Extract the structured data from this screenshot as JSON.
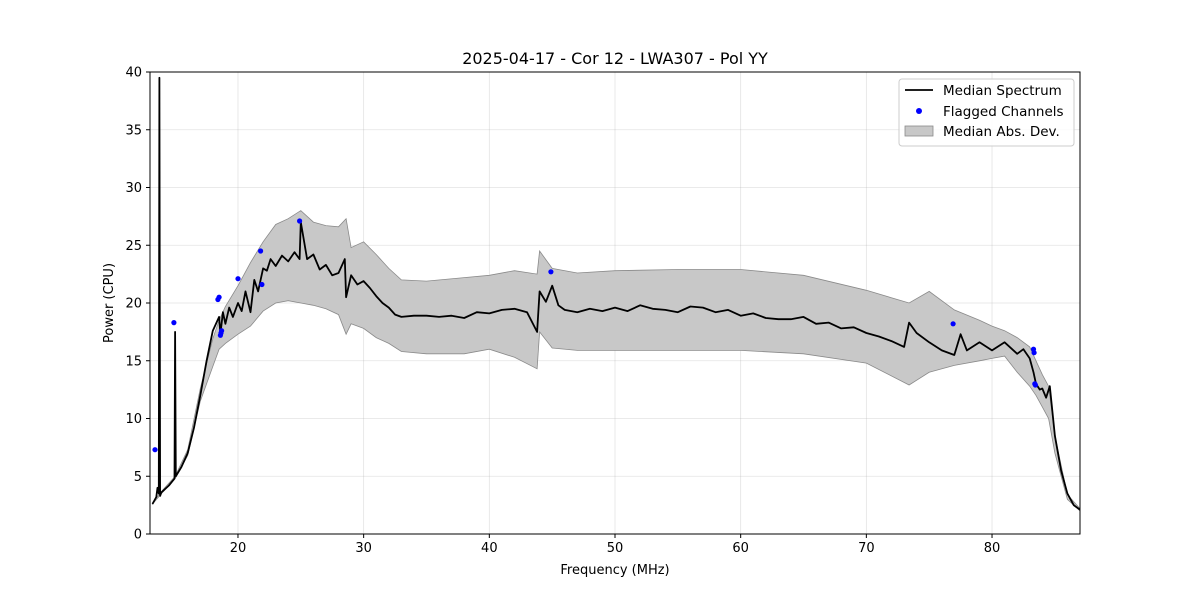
{
  "chart_data": {
    "type": "line",
    "title": "2025-04-17 - Cor 12 - LWA307 - Pol YY",
    "xlabel": "Frequency (MHz)",
    "ylabel": "Power (CPU)",
    "xlim": [
      13,
      87
    ],
    "ylim": [
      0,
      40
    ],
    "xticks": [
      20,
      30,
      40,
      50,
      60,
      70,
      80
    ],
    "yticks": [
      0,
      5,
      10,
      15,
      20,
      25,
      30,
      35,
      40
    ],
    "grid": true,
    "legend_position": "top-right",
    "colors": {
      "median": "#000000",
      "flagged": "#0000ff",
      "mad_fill": "#c8c8c8",
      "mad_edge": "#8a8a8a"
    },
    "series": [
      {
        "name": "Median Spectrum",
        "kind": "line",
        "x": [
          13.2,
          13.5,
          13.6,
          13.7,
          13.75,
          13.8,
          13.9,
          14.0,
          14.5,
          14.95,
          15.0,
          15.05,
          15.5,
          16.0,
          16.5,
          17.0,
          17.5,
          18.0,
          18.5,
          18.6,
          18.8,
          19.0,
          19.3,
          19.6,
          20.0,
          20.3,
          20.6,
          21.0,
          21.3,
          21.6,
          22.0,
          22.3,
          22.6,
          23.0,
          23.5,
          24.0,
          24.5,
          24.9,
          25.0,
          25.5,
          26.0,
          26.5,
          27.0,
          27.5,
          28.0,
          28.5,
          28.6,
          29.0,
          29.5,
          30.0,
          30.5,
          31.0,
          31.5,
          32.0,
          32.5,
          33.0,
          34.0,
          35.0,
          36.0,
          37.0,
          38.0,
          39.0,
          40.0,
          41.0,
          42.0,
          43.0,
          43.8,
          44.0,
          44.5,
          45.0,
          45.5,
          46.0,
          47.0,
          48.0,
          49.0,
          50.0,
          51.0,
          52.0,
          53.0,
          54.0,
          55.0,
          56.0,
          57.0,
          58.0,
          59.0,
          60.0,
          61.0,
          62.0,
          63.0,
          64.0,
          65.0,
          66.0,
          67.0,
          68.0,
          69.0,
          70.0,
          71.0,
          72.0,
          73.0,
          73.4,
          74.0,
          75.0,
          76.0,
          77.0,
          77.5,
          78.0,
          79.0,
          80.0,
          81.0,
          82.0,
          82.5,
          83.0,
          83.3,
          83.5,
          83.8,
          84.0,
          84.3,
          84.6,
          85.0,
          85.5,
          86.0,
          86.5,
          87.0
        ],
        "y": [
          2.6,
          3.2,
          4.0,
          3.5,
          39.5,
          3.3,
          3.6,
          3.7,
          4.2,
          4.8,
          17.5,
          5.0,
          5.8,
          7.0,
          9.2,
          12.0,
          15.0,
          17.6,
          18.8,
          17.3,
          19.2,
          18.2,
          19.6,
          18.8,
          20.0,
          19.3,
          21.0,
          19.2,
          22.0,
          21.0,
          23.0,
          22.8,
          23.8,
          23.2,
          24.1,
          23.6,
          24.4,
          23.8,
          27.0,
          23.8,
          24.2,
          22.9,
          23.3,
          22.4,
          22.6,
          23.8,
          20.5,
          22.4,
          21.6,
          21.9,
          21.3,
          20.6,
          20.0,
          19.6,
          19.0,
          18.8,
          18.9,
          18.9,
          18.8,
          18.9,
          18.7,
          19.2,
          19.1,
          19.4,
          19.5,
          19.2,
          17.5,
          21.0,
          20.1,
          21.5,
          19.8,
          19.4,
          19.2,
          19.5,
          19.3,
          19.6,
          19.3,
          19.8,
          19.5,
          19.4,
          19.2,
          19.7,
          19.6,
          19.2,
          19.4,
          18.9,
          19.1,
          18.7,
          18.6,
          18.6,
          18.8,
          18.2,
          18.3,
          17.8,
          17.9,
          17.4,
          17.1,
          16.7,
          16.2,
          18.3,
          17.4,
          16.6,
          15.9,
          15.5,
          17.3,
          15.9,
          16.6,
          15.9,
          16.6,
          15.6,
          16.0,
          15.2,
          14.0,
          13.0,
          12.5,
          12.6,
          11.8,
          12.8,
          8.5,
          5.5,
          3.5,
          2.5,
          2.1
        ]
      },
      {
        "name": "Flagged Channels",
        "kind": "scatter",
        "x": [
          13.4,
          14.9,
          18.4,
          18.5,
          18.6,
          18.65,
          18.7,
          20.0,
          21.8,
          21.9,
          24.9,
          44.9,
          76.9,
          83.3,
          83.35,
          83.4,
          83.45
        ],
        "y": [
          7.3,
          18.3,
          20.3,
          20.5,
          17.2,
          17.4,
          17.6,
          22.1,
          24.5,
          21.6,
          27.1,
          22.7,
          18.2,
          16.0,
          15.7,
          13.0,
          12.9
        ]
      },
      {
        "name": "Median Abs. Dev.",
        "kind": "band",
        "x": [
          13.2,
          14.0,
          15.0,
          16.0,
          17.0,
          18.0,
          18.5,
          19.0,
          20.0,
          21.0,
          22.0,
          23.0,
          24.0,
          25.0,
          26.0,
          27.0,
          28.0,
          28.6,
          29.0,
          30.0,
          31.0,
          32.0,
          33.0,
          35.0,
          38.0,
          40.0,
          42.0,
          43.8,
          44.0,
          45.0,
          47.0,
          50.0,
          55.0,
          60.0,
          65.0,
          70.0,
          73.4,
          75.0,
          77.0,
          79.0,
          80.0,
          81.0,
          82.0,
          83.0,
          83.5,
          84.0,
          84.5,
          85.0,
          86.0,
          87.0
        ],
        "lower": [
          2.6,
          3.6,
          4.8,
          6.8,
          11.5,
          14.5,
          16.0,
          16.5,
          17.3,
          18.0,
          19.3,
          20.0,
          20.2,
          20.0,
          19.8,
          19.5,
          19.0,
          17.3,
          18.2,
          17.8,
          17.0,
          16.5,
          15.8,
          15.6,
          15.6,
          16.0,
          15.3,
          14.3,
          17.5,
          16.1,
          15.9,
          15.9,
          15.9,
          15.9,
          15.6,
          14.8,
          12.9,
          14.0,
          14.6,
          15.0,
          15.2,
          15.4,
          14.0,
          12.8,
          12.0,
          11.0,
          10.0,
          7.0,
          3.0,
          2.0
        ],
        "upper": [
          2.7,
          3.8,
          5.0,
          7.3,
          12.6,
          16.9,
          18.5,
          19.7,
          21.5,
          23.5,
          25.3,
          26.8,
          27.3,
          28.0,
          27.0,
          26.7,
          26.6,
          27.3,
          24.8,
          25.3,
          24.2,
          23.0,
          22.0,
          21.9,
          22.2,
          22.4,
          22.8,
          22.5,
          24.5,
          23.0,
          22.6,
          22.8,
          22.9,
          22.9,
          22.4,
          21.1,
          20.0,
          21.0,
          19.4,
          18.5,
          18.0,
          17.6,
          17.0,
          16.2,
          15.0,
          13.8,
          12.8,
          8.5,
          3.4,
          2.2
        ]
      }
    ]
  }
}
